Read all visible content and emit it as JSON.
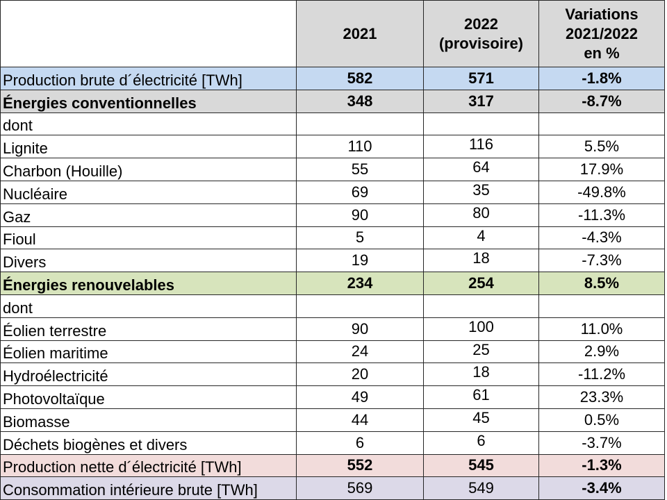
{
  "colors": {
    "header-bg": "#d9d9d9",
    "row-blue": "#c5d9f1",
    "row-gray": "#d9d9d9",
    "row-green": "#d7e4bc",
    "row-pink": "#f2dcdb",
    "row-lavender": "#dcd9e8",
    "grid-border": "#262626"
  },
  "table": {
    "header": [
      "",
      "2021",
      "2022\n(provisoire)",
      "Variations\n2021/2022\nen %"
    ],
    "rows": [
      {
        "label": "Production brute d´électricité [TWh]",
        "y2021": "582",
        "y2022": "571",
        "variation": "-1.8%",
        "bg": "blue",
        "align": "mid",
        "bold_label": false,
        "bold_values": true,
        "bold_variation": true
      },
      {
        "label": "Énergies conventionnelles",
        "y2021": "348",
        "y2022": "317",
        "variation": "-8.7%",
        "bg": "gray",
        "align": "mid",
        "bold_label": true,
        "bold_values": true,
        "bold_variation": true
      },
      {
        "label": "dont",
        "y2021": "",
        "y2022": "",
        "variation": "",
        "bg": "none",
        "align": "plain",
        "bold_label": false,
        "bold_values": false,
        "bold_variation": false
      },
      {
        "label": "Lignite",
        "y2021": "110",
        "y2022": "116",
        "variation": "5.5%",
        "bg": "none",
        "align": "plain",
        "bold_label": false,
        "bold_values": false,
        "bold_variation": false
      },
      {
        "label": "Charbon (Houille)",
        "y2021": "55",
        "y2022": "64",
        "variation": "17.9%",
        "bg": "none",
        "align": "plain",
        "bold_label": false,
        "bold_values": false,
        "bold_variation": false
      },
      {
        "label": "Nucléaire",
        "y2021": "69",
        "y2022": "35",
        "variation": "-49.8%",
        "bg": "none",
        "align": "plain",
        "bold_label": false,
        "bold_values": false,
        "bold_variation": false
      },
      {
        "label": "Gaz",
        "y2021": "90",
        "y2022": "80",
        "variation": "-11.3%",
        "bg": "none",
        "align": "plain",
        "bold_label": false,
        "bold_values": false,
        "bold_variation": false
      },
      {
        "label": "Fioul",
        "y2021": "5",
        "y2022": "4",
        "variation": "-4.3%",
        "bg": "none",
        "align": "plain",
        "bold_label": false,
        "bold_values": false,
        "bold_variation": false
      },
      {
        "label": "Divers",
        "y2021": "19",
        "y2022": "18",
        "variation": "-7.3%",
        "bg": "none",
        "align": "plain",
        "bold_label": false,
        "bold_values": false,
        "bold_variation": false
      },
      {
        "label": "Énergies renouvelables",
        "y2021": "234",
        "y2022": "254",
        "variation": "8.5%",
        "bg": "green",
        "align": "mid",
        "bold_label": true,
        "bold_values": true,
        "bold_variation": true
      },
      {
        "label": "dont",
        "y2021": "",
        "y2022": "",
        "variation": "",
        "bg": "none",
        "align": "plain",
        "bold_label": false,
        "bold_values": false,
        "bold_variation": false
      },
      {
        "label": "Éolien terrestre",
        "y2021": "90",
        "y2022": "100",
        "variation": "11.0%",
        "bg": "none",
        "align": "plain",
        "bold_label": false,
        "bold_values": false,
        "bold_variation": false
      },
      {
        "label": "Éolien maritime",
        "y2021": "24",
        "y2022": "25",
        "variation": "2.9%",
        "bg": "none",
        "align": "plain",
        "bold_label": false,
        "bold_values": false,
        "bold_variation": false
      },
      {
        "label": "Hydroélectricité",
        "y2021": "20",
        "y2022": "18",
        "variation": "-11.2%",
        "bg": "none",
        "align": "plain",
        "bold_label": false,
        "bold_values": false,
        "bold_variation": false
      },
      {
        "label": "Photovoltaïque",
        "y2021": "49",
        "y2022": "61",
        "variation": "23.3%",
        "bg": "none",
        "align": "plain",
        "bold_label": false,
        "bold_values": false,
        "bold_variation": false
      },
      {
        "label": "Biomasse",
        "y2021": "44",
        "y2022": "45",
        "variation": "0.5%",
        "bg": "none",
        "align": "plain",
        "bold_label": false,
        "bold_values": false,
        "bold_variation": false
      },
      {
        "label": "Déchets biogènes et divers",
        "y2021": "6",
        "y2022": "6",
        "variation": "-3.7%",
        "bg": "none",
        "align": "plain",
        "bold_label": false,
        "bold_values": false,
        "bold_variation": false
      },
      {
        "label": "Production nette d´électricité [TWh]",
        "y2021": "552",
        "y2022": "545",
        "variation": "-1.3%",
        "bg": "pink",
        "align": "mid",
        "bold_label": false,
        "bold_values": true,
        "bold_variation": true
      },
      {
        "label": "Consommation intérieure brute [TWh]",
        "y2021": "569",
        "y2022": "549",
        "variation": "-3.4%",
        "bg": "lavender",
        "align": "mid",
        "bold_label": false,
        "bold_values": false,
        "bold_variation": true
      }
    ]
  },
  "chart_data": {
    "type": "table",
    "columns": [
      "",
      "2021",
      "2022 (provisoire)",
      "Variations 2021/2022 en %"
    ],
    "rows": [
      [
        "Production brute d´électricité [TWh]",
        582,
        571,
        "-1.8%"
      ],
      [
        "Énergies conventionnelles",
        348,
        317,
        "-8.7%"
      ],
      [
        "dont",
        null,
        null,
        null
      ],
      [
        "Lignite",
        110,
        116,
        "5.5%"
      ],
      [
        "Charbon (Houille)",
        55,
        64,
        "17.9%"
      ],
      [
        "Nucléaire",
        69,
        35,
        "-49.8%"
      ],
      [
        "Gaz",
        90,
        80,
        "-11.3%"
      ],
      [
        "Fioul",
        5,
        4,
        "-4.3%"
      ],
      [
        "Divers",
        19,
        18,
        "-7.3%"
      ],
      [
        "Énergies renouvelables",
        234,
        254,
        "8.5%"
      ],
      [
        "dont",
        null,
        null,
        null
      ],
      [
        "Éolien terrestre",
        90,
        100,
        "11.0%"
      ],
      [
        "Éolien maritime",
        24,
        25,
        "2.9%"
      ],
      [
        "Hydroélectricité",
        20,
        18,
        "-11.2%"
      ],
      [
        "Photovoltaïque",
        49,
        61,
        "23.3%"
      ],
      [
        "Biomasse",
        44,
        45,
        "0.5%"
      ],
      [
        "Déchets biogènes et divers",
        6,
        6,
        "-3.7%"
      ],
      [
        "Production nette d´électricité [TWh]",
        552,
        545,
        "-1.3%"
      ],
      [
        "Consommation intérieure brute [TWh]",
        569,
        549,
        "-3.4%"
      ]
    ]
  }
}
